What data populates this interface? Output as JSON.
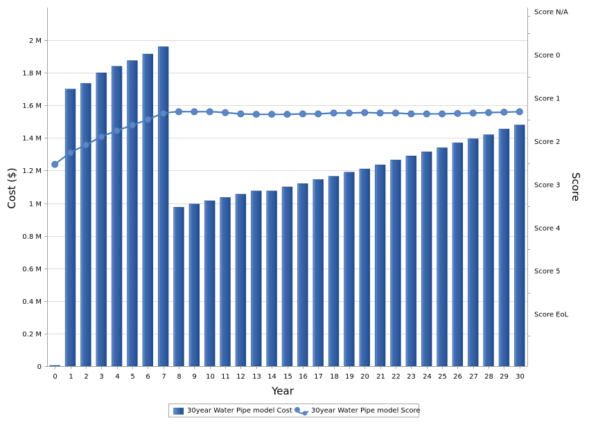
{
  "colors": {
    "bar": "#2f5ea6",
    "bar_light": "#6f95cc",
    "bar_dark": "#1f4a8a",
    "line": "#4a7cc0",
    "marker": "#5a87c8",
    "grid": "#d9d9d9",
    "axis": "#a0a0a0"
  },
  "chart_data": {
    "type": "bar",
    "xlabel": "Year",
    "ylabel": "Cost ($)",
    "y2label": "Score",
    "x": [
      0,
      1,
      2,
      3,
      4,
      5,
      6,
      7,
      8,
      9,
      10,
      11,
      12,
      13,
      14,
      15,
      16,
      17,
      18,
      19,
      20,
      21,
      22,
      23,
      24,
      25,
      26,
      27,
      28,
      29,
      30
    ],
    "xtick_labels": [
      "0",
      "1",
      "2",
      "3",
      "4",
      "5",
      "6",
      "7",
      "8",
      "9",
      "10",
      "11",
      "12",
      "13",
      "14",
      "15",
      "16",
      "17",
      "18",
      "19",
      "20",
      "21",
      "22",
      "23",
      "24",
      "25",
      "26",
      "27",
      "28",
      "29",
      "30"
    ],
    "ylim": [
      0,
      2200000
    ],
    "ytick_values": [
      0,
      200000,
      400000,
      600000,
      800000,
      1000000,
      1200000,
      1400000,
      1600000,
      1800000,
      2000000
    ],
    "ytick_labels": [
      "0",
      "0.2 M",
      "0.4 M",
      "0.6 M",
      "0.8 M",
      "1 M",
      "1.2 M",
      "1.4 M",
      "1.6 M",
      "1.8 M",
      "2 M"
    ],
    "y2lim": [
      7.7,
      -0.6
    ],
    "y2tick_values": [
      7,
      6,
      5,
      4,
      3,
      2,
      1,
      0,
      -0.4
    ],
    "y2tick_labels": [
      "Score EoL",
      "Score 5",
      "Score 4",
      "Score 3",
      "Score 2",
      "Score 1",
      "Score 0",
      "Score N/A"
    ],
    "y2tick_positions": [
      6.5,
      5.5,
      4.5,
      3.5,
      2.5,
      1.5,
      0.5,
      -0.5
    ],
    "grid": true,
    "legend_position": "bottom",
    "series": [
      {
        "name": "30year  Water Pipe model Cost",
        "type": "bar",
        "axis": "left",
        "values": [
          0,
          1700000,
          1735000,
          1800000,
          1840000,
          1875000,
          1915000,
          1960000,
          975000,
          995000,
          1015000,
          1035000,
          1055000,
          1075000,
          1075000,
          1100000,
          1120000,
          1145000,
          1165000,
          1190000,
          1210000,
          1235000,
          1265000,
          1290000,
          1315000,
          1340000,
          1370000,
          1395000,
          1420000,
          1455000,
          1480000
        ]
      },
      {
        "name": "30year  Water Pipe model Score",
        "type": "line",
        "axis": "right",
        "values": [
          3.03,
          2.76,
          2.58,
          2.39,
          2.25,
          2.12,
          1.99,
          1.85,
          1.81,
          1.81,
          1.81,
          1.83,
          1.86,
          1.87,
          1.87,
          1.87,
          1.86,
          1.86,
          1.84,
          1.84,
          1.83,
          1.84,
          1.84,
          1.86,
          1.86,
          1.86,
          1.85,
          1.84,
          1.83,
          1.82,
          1.81
        ]
      }
    ]
  }
}
